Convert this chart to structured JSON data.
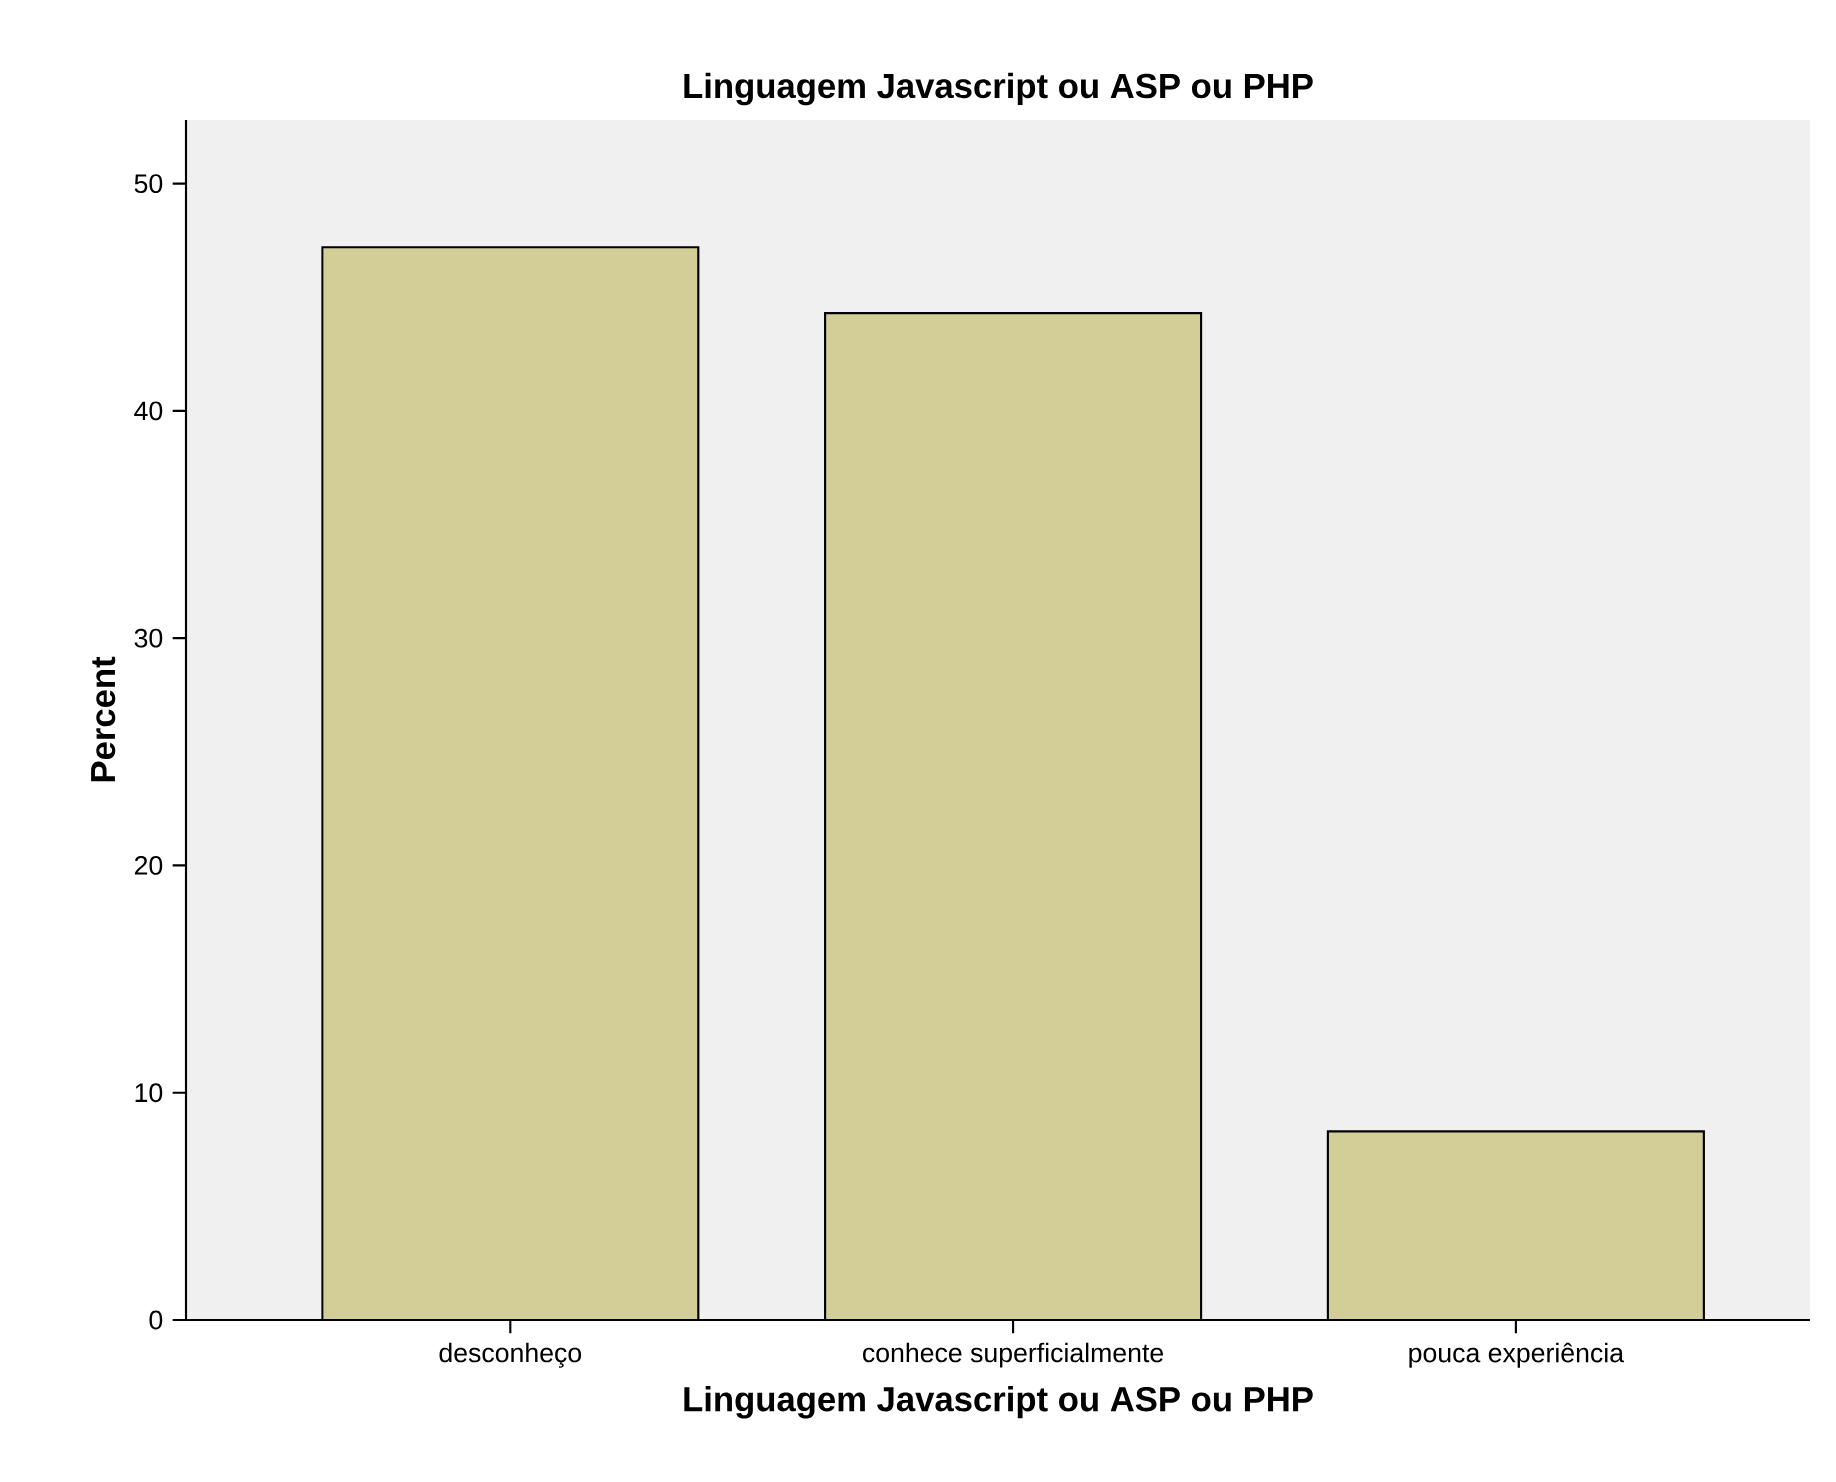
{
  "chart_data": {
    "type": "bar",
    "title": "Linguagem Javascript ou ASP ou PHP",
    "xlabel": "Linguagem Javascript ou ASP ou PHP",
    "ylabel": "Percent",
    "categories": [
      "desconheço",
      "conhece superficialmente",
      "pouca experiência"
    ],
    "values": [
      47.2,
      44.3,
      8.3
    ],
    "color": "#d3ce98",
    "ylim": [
      0,
      52.8
    ],
    "yticks": [
      0,
      10,
      20,
      30,
      40,
      50
    ],
    "grid": false
  }
}
